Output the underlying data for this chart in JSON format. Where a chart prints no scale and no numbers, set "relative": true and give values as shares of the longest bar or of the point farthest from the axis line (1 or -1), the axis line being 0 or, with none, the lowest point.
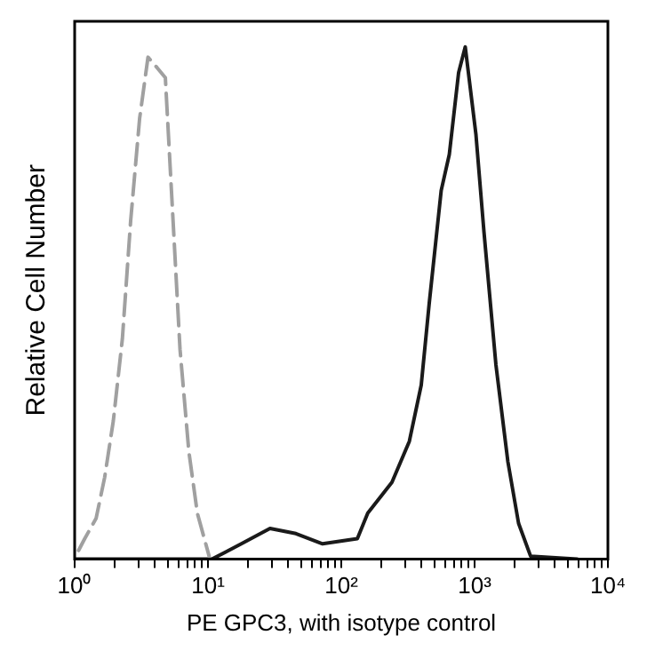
{
  "chart_data": {
    "type": "line",
    "xlabel": "PE GPC3, with isotype control",
    "ylabel": "Relative Cell Number",
    "relative": true,
    "log": "x",
    "grid": false,
    "legend": false,
    "marker": "none",
    "xlim": [
      1,
      10000
    ],
    "xticks": [
      {
        "value": 1,
        "label": "10⁰"
      },
      {
        "value": 2,
        "label": null
      },
      {
        "value": 3,
        "label": null
      },
      {
        "value": 4,
        "label": null
      },
      {
        "value": 5,
        "label": null
      },
      {
        "value": 6,
        "label": null
      },
      {
        "value": 7,
        "label": null
      },
      {
        "value": 8,
        "label": null
      },
      {
        "value": 9,
        "label": null
      },
      {
        "value": 10,
        "label": "10¹"
      },
      {
        "value": 20,
        "label": null
      },
      {
        "value": 30,
        "label": null
      },
      {
        "value": 40,
        "label": null
      },
      {
        "value": 50,
        "label": null
      },
      {
        "value": 60,
        "label": null
      },
      {
        "value": 70,
        "label": null
      },
      {
        "value": 80,
        "label": null
      },
      {
        "value": 90,
        "label": null
      },
      {
        "value": 100,
        "label": "10²"
      },
      {
        "value": 200,
        "label": null
      },
      {
        "value": 300,
        "label": null
      },
      {
        "value": 400,
        "label": null
      },
      {
        "value": 500,
        "label": null
      },
      {
        "value": 600,
        "label": null
      },
      {
        "value": 700,
        "label": null
      },
      {
        "value": 800,
        "label": null
      },
      {
        "value": 900,
        "label": null
      },
      {
        "value": 1000,
        "label": "10³"
      },
      {
        "value": 2000,
        "label": null
      },
      {
        "value": 3000,
        "label": null
      },
      {
        "value": 4000,
        "label": null
      },
      {
        "value": 5000,
        "label": null
      },
      {
        "value": 6000,
        "label": null
      },
      {
        "value": 7000,
        "label": null
      },
      {
        "value": 8000,
        "label": null
      },
      {
        "value": 9000,
        "label": null
      },
      {
        "value": 10000,
        "label": "10⁴"
      }
    ],
    "series": [
      {
        "color": "#a0a0a0",
        "line_style": "dashed",
        "x": [
          1.07,
          1.19,
          1.45,
          1.68,
          1.95,
          2.28,
          2.63,
          3.07,
          3.55,
          4.14,
          4.79,
          5.32,
          6.17,
          7.19,
          8.32,
          10.2
        ],
        "values": [
          0.017,
          0.04,
          0.08,
          0.16,
          0.27,
          0.43,
          0.66,
          0.86,
          0.98,
          0.96,
          0.94,
          0.72,
          0.41,
          0.21,
          0.09,
          0.006
        ]
      },
      {
        "color": "#1a1a1a",
        "line_style": "solid",
        "x": [
          1,
          10.7,
          17.8,
          29.2,
          45.7,
          72.4,
          132,
          158,
          240,
          324,
          398,
          457,
          562,
          646,
          759,
          851,
          1023,
          1175,
          1445,
          1778,
          2138,
          2630,
          5888
        ],
        "values": [
          0,
          0,
          0.03,
          0.06,
          0.05,
          0.03,
          0.04,
          0.09,
          0.15,
          0.23,
          0.34,
          0.5,
          0.72,
          0.79,
          0.95,
          1,
          0.83,
          0.64,
          0.38,
          0.19,
          0.07,
          0.006,
          0
        ]
      }
    ]
  }
}
